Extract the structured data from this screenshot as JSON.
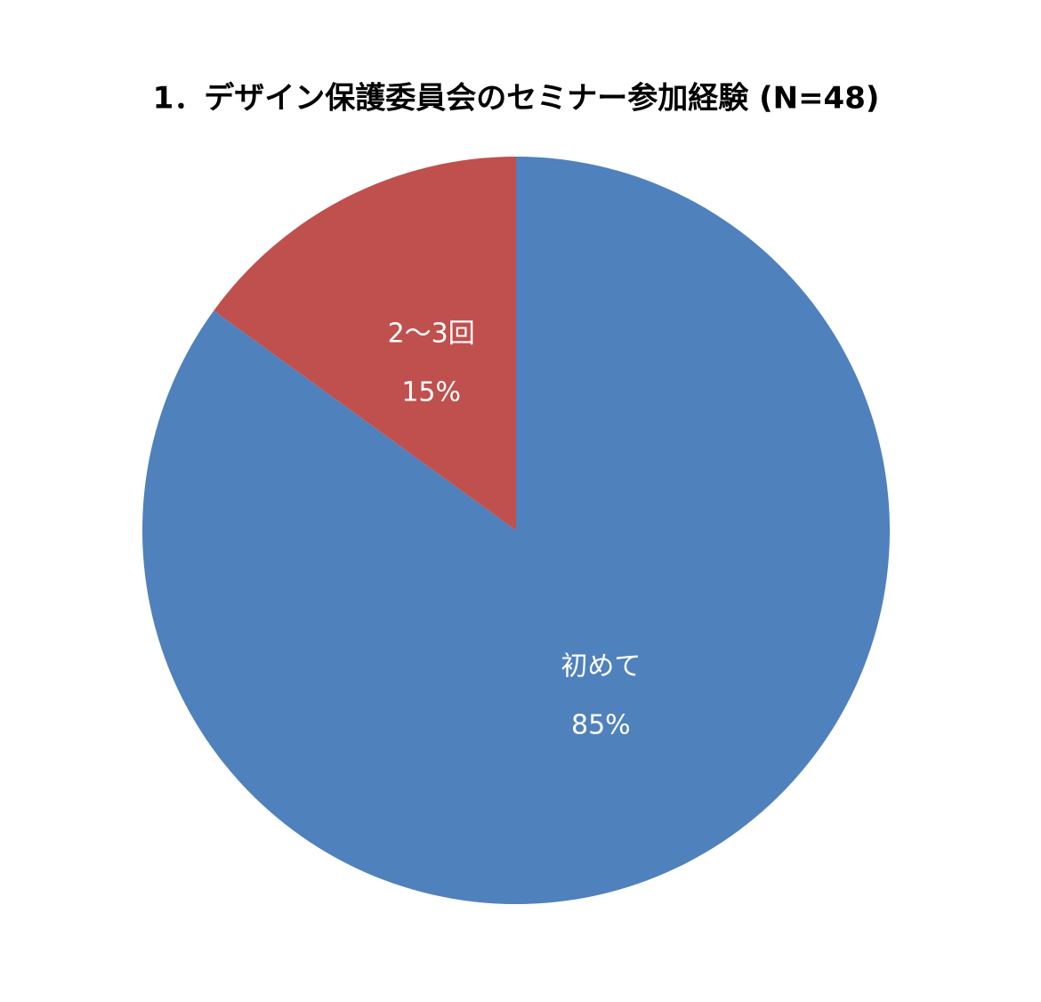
{
  "chart_data": {
    "type": "pie",
    "title": "1．デザイン保護委員会のセミナー参加経験 (N=48)",
    "categories": [
      "初めて",
      "2～3回"
    ],
    "values": [
      85,
      15
    ],
    "value_labels": [
      "85%",
      "15%"
    ],
    "colors": [
      "#4f81bd",
      "#c0504d"
    ]
  }
}
